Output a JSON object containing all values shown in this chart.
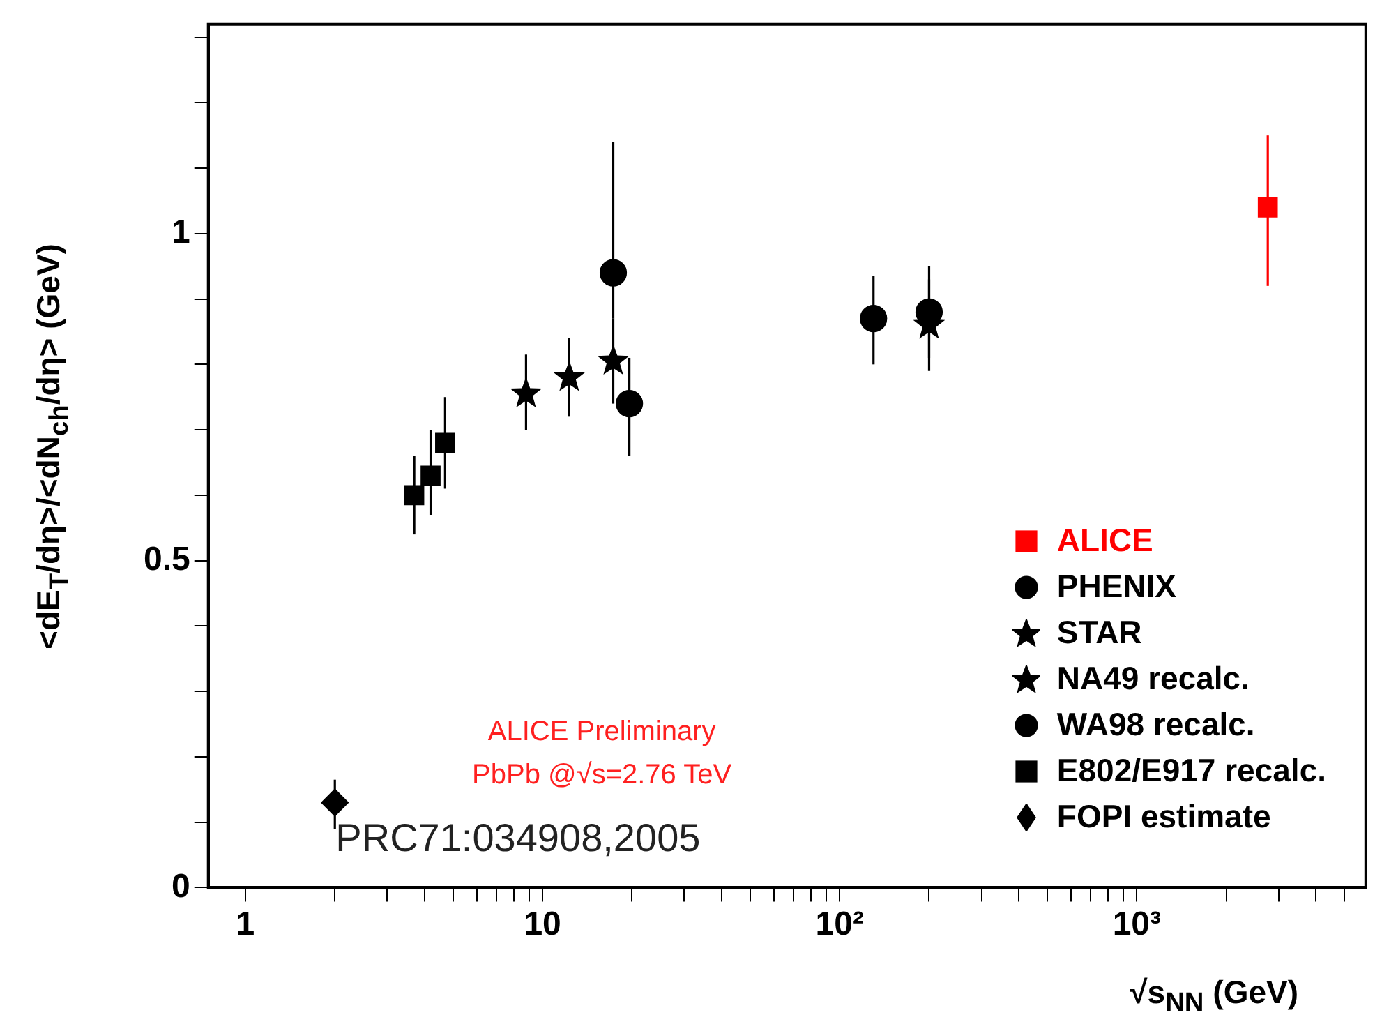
{
  "chart_data": {
    "type": "scatter",
    "xlabel": "√s$_{NN}$ (GeV)",
    "ylabel": "<dE$_{T}$/dη>/<dN$_{ch}$/dη> (GeV)",
    "log": "x",
    "grid": false,
    "legend": "bottom right",
    "xlim": [
      0.75,
      5900
    ],
    "ylim": [
      0,
      1.32
    ],
    "xticks": [
      {
        "value": 1,
        "label": "1"
      },
      {
        "value": 2,
        "label": null
      },
      {
        "value": 3,
        "label": null
      },
      {
        "value": 4,
        "label": null
      },
      {
        "value": 5,
        "label": null
      },
      {
        "value": 6,
        "label": null
      },
      {
        "value": 7,
        "label": null
      },
      {
        "value": 8,
        "label": null
      },
      {
        "value": 9,
        "label": null
      },
      {
        "value": 10,
        "label": "10"
      },
      {
        "value": 20,
        "label": null
      },
      {
        "value": 30,
        "label": null
      },
      {
        "value": 40,
        "label": null
      },
      {
        "value": 50,
        "label": null
      },
      {
        "value": 60,
        "label": null
      },
      {
        "value": 70,
        "label": null
      },
      {
        "value": 80,
        "label": null
      },
      {
        "value": 90,
        "label": null
      },
      {
        "value": 100,
        "label": "10²"
      },
      {
        "value": 200,
        "label": null
      },
      {
        "value": 300,
        "label": null
      },
      {
        "value": 400,
        "label": null
      },
      {
        "value": 500,
        "label": null
      },
      {
        "value": 600,
        "label": null
      },
      {
        "value": 700,
        "label": null
      },
      {
        "value": 800,
        "label": null
      },
      {
        "value": 900,
        "label": null
      },
      {
        "value": 1000,
        "label": "10³"
      },
      {
        "value": 2000,
        "label": null
      },
      {
        "value": 3000,
        "label": null
      },
      {
        "value": 4000,
        "label": null
      },
      {
        "value": 5000,
        "label": null
      }
    ],
    "yticks": [
      {
        "value": 0,
        "label": "0"
      },
      {
        "value": 0.1,
        "label": null
      },
      {
        "value": 0.2,
        "label": null
      },
      {
        "value": 0.3,
        "label": null
      },
      {
        "value": 0.4,
        "label": null
      },
      {
        "value": 0.5,
        "label": "0.5"
      },
      {
        "value": 0.6,
        "label": null
      },
      {
        "value": 0.7,
        "label": null
      },
      {
        "value": 0.8,
        "label": null
      },
      {
        "value": 0.9,
        "label": null
      },
      {
        "value": 1,
        "label": "1"
      },
      {
        "value": 1.1,
        "label": null
      },
      {
        "value": 1.2,
        "label": null
      },
      {
        "value": 1.3,
        "label": null
      }
    ],
    "series": [
      {
        "name": "ALICE",
        "color": "#ff0000",
        "marker": "square",
        "x": [
          2760
        ],
        "values": [
          1.04
        ],
        "errors": [
          [
            0.92,
            1.15
          ]
        ]
      },
      {
        "name": "PHENIX",
        "color": "#000000",
        "marker": "circle",
        "x": [
          19.6,
          130,
          200
        ],
        "values": [
          0.74,
          0.87,
          0.88
        ],
        "errors": [
          [
            0.66,
            0.81
          ],
          [
            0.8,
            0.935
          ],
          [
            0.81,
            0.95
          ]
        ]
      },
      {
        "name": "STAR",
        "color": "#000000",
        "marker": "star",
        "x": [
          200
        ],
        "values": [
          0.86
        ],
        "errors": [
          [
            0.79,
            0.93
          ]
        ]
      },
      {
        "name": "NA49 recalc.",
        "color": "#000000",
        "marker": "star",
        "x": [
          8.8,
          12.3,
          17.3
        ],
        "values": [
          0.755,
          0.78,
          0.805
        ],
        "errors": [
          [
            0.7,
            0.815
          ],
          [
            0.72,
            0.84
          ],
          [
            0.74,
            0.87
          ]
        ]
      },
      {
        "name": "WA98 recalc.",
        "color": "#000000",
        "marker": "circle",
        "x": [
          17.3
        ],
        "values": [
          0.94
        ],
        "errors": [
          [
            0.87,
            1.14
          ]
        ]
      },
      {
        "name": "E802/E917 recalc.",
        "color": "#000000",
        "marker": "square",
        "x": [
          3.7,
          4.2,
          4.7
        ],
        "values": [
          0.6,
          0.63,
          0.68
        ],
        "errors": [
          [
            0.54,
            0.66
          ],
          [
            0.57,
            0.7
          ],
          [
            0.61,
            0.75
          ]
        ]
      },
      {
        "name": "FOPI estimate",
        "color": "#000000",
        "marker": "diamond",
        "x": [
          2
        ],
        "values": [
          0.13
        ],
        "errors": [
          [
            0.09,
            0.165
          ]
        ]
      }
    ],
    "annotations": [
      "ALICE Preliminary",
      "PbPb @√s=2.76 TeV",
      "PRC71:034908,2005"
    ]
  }
}
